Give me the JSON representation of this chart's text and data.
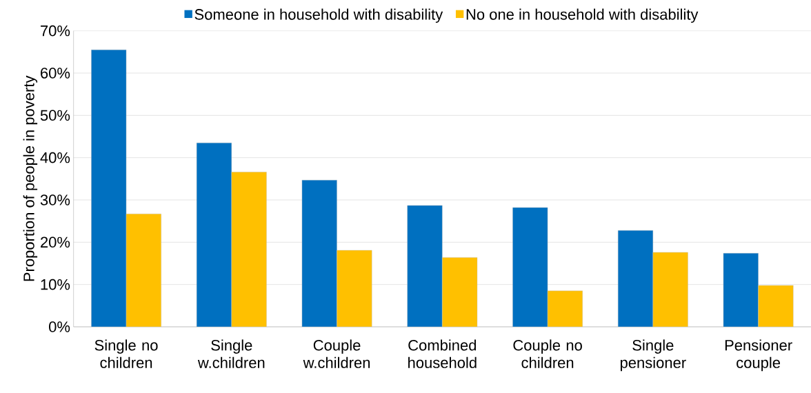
{
  "chart_data": {
    "type": "bar",
    "ylabel": "Proportion of people in poverty",
    "categories": [
      "Single no children",
      "Single w.children",
      "Couple w.children",
      "Combined household",
      "Couple no children",
      "Single pensioner",
      "Pensioner couple"
    ],
    "series": [
      {
        "name": "Someone in household with disability",
        "color": "#0070c0",
        "values": [
          65.5,
          43.5,
          34.7,
          28.7,
          28.2,
          22.8,
          17.4
        ]
      },
      {
        "name": "No one in household with disability",
        "color": "#ffc000",
        "values": [
          26.7,
          36.6,
          18.1,
          16.4,
          8.5,
          17.6,
          9.8
        ]
      }
    ],
    "ylim": [
      0,
      70
    ],
    "yticks": [
      {
        "value": 0,
        "label": "0%"
      },
      {
        "value": 10,
        "label": "10%"
      },
      {
        "value": 20,
        "label": "20%"
      },
      {
        "value": 30,
        "label": "30%"
      },
      {
        "value": 40,
        "label": "40%"
      },
      {
        "value": 50,
        "label": "50%"
      },
      {
        "value": 60,
        "label": "60%"
      },
      {
        "value": 70,
        "label": "70%"
      }
    ],
    "grid": "y",
    "legend": "top"
  }
}
